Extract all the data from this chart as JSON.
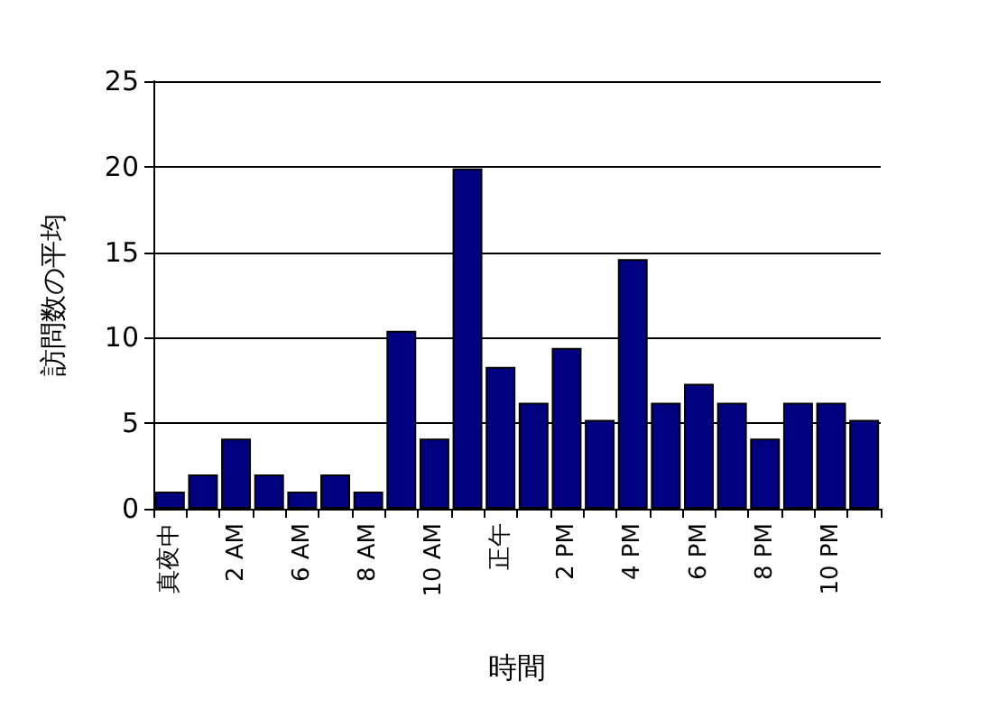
{
  "chart_data": {
    "type": "bar",
    "xlabel": "時間",
    "ylabel": "訪問数の平均",
    "categories": [
      "真夜中",
      null,
      "2 AM",
      null,
      "6 AM",
      null,
      "8 AM",
      null,
      "10 AM",
      null,
      "正午",
      null,
      "2 PM",
      null,
      "4 PM",
      null,
      "6 PM",
      null,
      "8 PM",
      null,
      "10 PM",
      null
    ],
    "values": [
      1,
      2,
      4.1,
      2,
      1,
      2,
      1,
      10.4,
      4.1,
      19.9,
      8.3,
      6.2,
      9.4,
      5.2,
      14.6,
      6.2,
      7.3,
      6.2,
      4.1,
      6.2,
      6.2,
      5.2
    ],
    "color": "#000080",
    "ylim": [
      0,
      25
    ],
    "yticks": [
      0,
      5,
      10,
      15,
      20,
      25
    ],
    "grid": "y"
  }
}
